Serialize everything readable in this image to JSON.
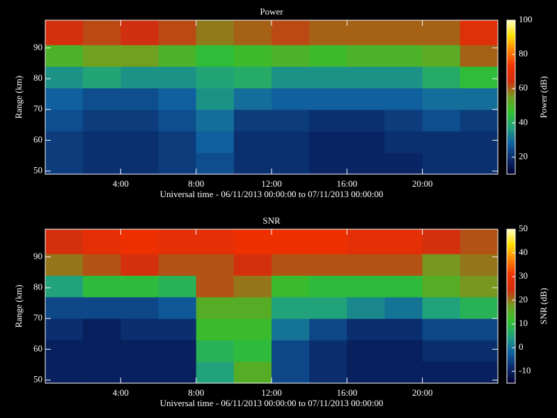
{
  "chart_data": [
    {
      "type": "heatmap",
      "title": "Power",
      "xlabel": "Universal time - 06/11/2013 00:00:00 to 07/11/2013 00:00:00",
      "ylabel": "Range (km)",
      "colorbar_label": "Power (dB)",
      "xlim": [
        0,
        24
      ],
      "ylim": [
        49,
        99
      ],
      "xticks": [
        {
          "value": 4,
          "label": "4:00"
        },
        {
          "value": 8,
          "label": "8:00"
        },
        {
          "value": 12,
          "label": "12:00"
        },
        {
          "value": 16,
          "label": "16:00"
        },
        {
          "value": 20,
          "label": "20:00"
        }
      ],
      "yticks": [
        50,
        60,
        70,
        80,
        90
      ],
      "xbins": [
        0,
        2,
        4,
        6,
        8,
        10,
        12,
        14,
        16,
        18,
        20,
        22,
        24
      ],
      "ybins": [
        49,
        56,
        63,
        70,
        77,
        84,
        91,
        99
      ],
      "z": [
        [
          22,
          20,
          20,
          22,
          25,
          20,
          20,
          18,
          18,
          18,
          20,
          20
        ],
        [
          22,
          20,
          20,
          22,
          28,
          20,
          20,
          18,
          18,
          20,
          20,
          20
        ],
        [
          25,
          22,
          22,
          25,
          30,
          22,
          22,
          20,
          20,
          22,
          25,
          22
        ],
        [
          28,
          25,
          25,
          28,
          35,
          30,
          28,
          28,
          28,
          28,
          30,
          30
        ],
        [
          35,
          38,
          35,
          35,
          38,
          40,
          35,
          35,
          35,
          35,
          40,
          45
        ],
        [
          50,
          55,
          55,
          50,
          45,
          48,
          50,
          48,
          50,
          50,
          52,
          60
        ],
        [
          65,
          62,
          64,
          62,
          58,
          60,
          62,
          60,
          60,
          60,
          60,
          68
        ]
      ],
      "clim": [
        10,
        100
      ],
      "cticks": [
        20,
        40,
        60,
        80,
        100
      ],
      "colormap": [
        "#000030",
        "#0a2a6a",
        "#1060a0",
        "#20a080",
        "#30c030",
        "#70a020",
        "#d03010",
        "#f03000",
        "#ff8000",
        "#ffe000",
        "#ffffc0"
      ]
    },
    {
      "type": "heatmap",
      "title": "SNR",
      "xlabel": "Universal time - 06/11/2013 00:00:00 to 07/11/2013 00:00:00",
      "ylabel": "Range (km)",
      "colorbar_label": "SNR (dB)",
      "xlim": [
        0,
        24
      ],
      "ylim": [
        49,
        99
      ],
      "xticks": [
        {
          "value": 4,
          "label": "4:00"
        },
        {
          "value": 8,
          "label": "8:00"
        },
        {
          "value": 12,
          "label": "12:00"
        },
        {
          "value": 16,
          "label": "16:00"
        },
        {
          "value": 20,
          "label": "20:00"
        }
      ],
      "yticks": [
        50,
        60,
        70,
        80,
        90
      ],
      "xbins": [
        0,
        2,
        4,
        6,
        8,
        10,
        12,
        14,
        16,
        18,
        20,
        22,
        24
      ],
      "ybins": [
        49,
        56,
        63,
        70,
        77,
        84,
        91,
        99
      ],
      "z": [
        [
          -10,
          -10,
          -10,
          -10,
          5,
          15,
          -5,
          -8,
          -10,
          -10,
          -10,
          -10
        ],
        [
          -10,
          -10,
          -10,
          -10,
          8,
          10,
          -5,
          -8,
          -10,
          -10,
          -8,
          -8
        ],
        [
          -8,
          -10,
          -8,
          -8,
          12,
          12,
          0,
          -5,
          -8,
          -8,
          -5,
          -5
        ],
        [
          -5,
          -5,
          -5,
          -3,
          15,
          15,
          5,
          5,
          2,
          0,
          5,
          8
        ],
        [
          5,
          10,
          10,
          8,
          22,
          20,
          12,
          10,
          10,
          10,
          15,
          18
        ],
        [
          20,
          22,
          25,
          22,
          22,
          25,
          22,
          22,
          22,
          22,
          18,
          20
        ],
        [
          25,
          28,
          30,
          28,
          28,
          30,
          30,
          30,
          28,
          28,
          25,
          22
        ]
      ],
      "clim": [
        -15,
        50
      ],
      "cticks": [
        -10,
        0,
        10,
        20,
        30,
        40,
        50
      ],
      "colormap": [
        "#000030",
        "#0a2a6a",
        "#1060a0",
        "#20a080",
        "#30c030",
        "#70a020",
        "#d03010",
        "#f03000",
        "#ff8000",
        "#ffe000",
        "#ffffc0"
      ]
    }
  ]
}
